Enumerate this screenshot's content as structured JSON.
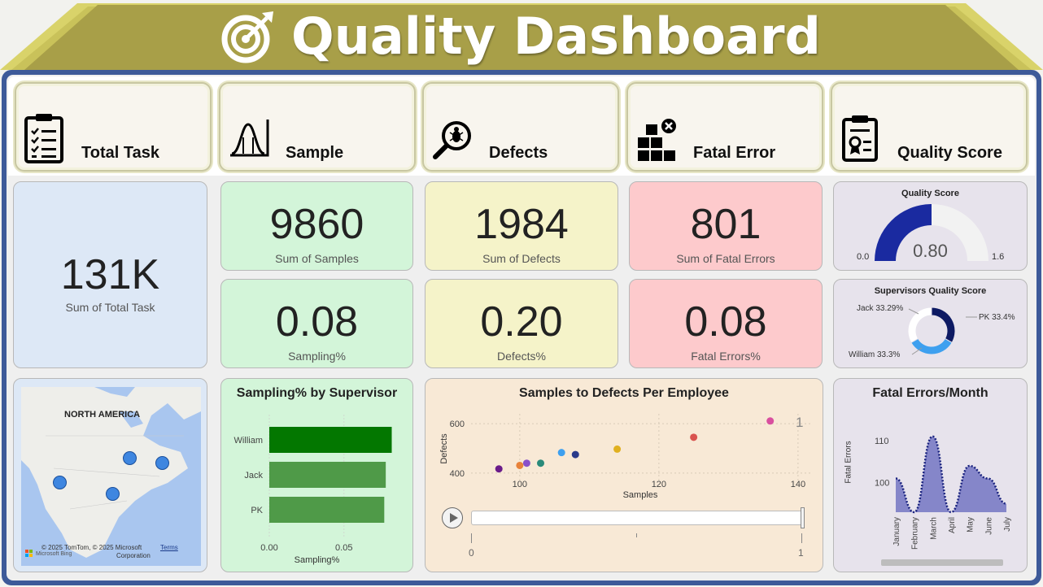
{
  "header": {
    "title": "Quality Dashboard",
    "icon": "target-icon"
  },
  "categories": [
    {
      "label": "Total Task",
      "icon": "clipboard-checklist-icon"
    },
    {
      "label": "Sample",
      "icon": "bell-curve-icon"
    },
    {
      "label": "Defects",
      "icon": "bug-magnifier-icon"
    },
    {
      "label": "Fatal Error",
      "icon": "boxes-error-icon"
    },
    {
      "label": "Quality Score",
      "icon": "clipboard-badge-icon"
    }
  ],
  "kpis": {
    "total_task": {
      "value": "131K",
      "label": "Sum of Total Task"
    },
    "samples": {
      "value": "9860",
      "label": "Sum of Samples"
    },
    "defects": {
      "value": "1984",
      "label": "Sum of Defects"
    },
    "fatal_errors": {
      "value": "801",
      "label": "Sum of Fatal Errors"
    },
    "sampling_pct": {
      "value": "0.08",
      "label": "Sampling%"
    },
    "defects_pct": {
      "value": "0.20",
      "label": "Defects%"
    },
    "fatal_pct": {
      "value": "0.08",
      "label": "Fatal  Errors%"
    }
  },
  "gauge": {
    "title": "Quality Score",
    "value": "0.80",
    "min": "0.0",
    "max": "1.6",
    "fill_fraction": 0.5,
    "fill_color": "#1a2aa0",
    "track_color": "#f2f2f2"
  },
  "donut": {
    "title": "Supervisors Quality Score",
    "slices": [
      {
        "name": "Jack",
        "pct": 33.29,
        "label": "Jack 33.29%",
        "color": "#0d1a63"
      },
      {
        "name": "PK",
        "pct": 33.4,
        "label": "PK 33.4%",
        "color": "#3ea0ef"
      },
      {
        "name": "William",
        "pct": 33.3,
        "label": "William 33.3%",
        "color": "#ffffff"
      }
    ]
  },
  "map": {
    "region_label": "NORTH AMERICA",
    "copyright": "© 2025 TomTom, © 2025 Microsoft Corporation",
    "copyright_line1": "© 2025 TomTom, © 2025 Microsoft",
    "copyright_line2": "Corporation",
    "terms": "Terms",
    "brand": "Microsoft Bing"
  },
  "chart_data": [
    {
      "type": "bar",
      "title": "Sampling% by Supervisor",
      "categories": [
        "William",
        "Jack",
        "PK"
      ],
      "values": [
        0.082,
        0.078,
        0.077
      ],
      "xlabel": "Sampling%",
      "xlim": [
        0,
        0.085
      ],
      "ticks": [
        "0.00",
        "0.05"
      ],
      "colors": [
        "#037700",
        "#4f9a48",
        "#4f9a48"
      ]
    },
    {
      "type": "scatter",
      "title": "Samples to Defects Per Employee",
      "xlabel": "Samples",
      "ylabel": "Defects",
      "xlim": [
        93,
        142
      ],
      "ylim": [
        360,
        640
      ],
      "xticks": [
        "100",
        "120",
        "140"
      ],
      "yticks": [
        "400",
        "600"
      ],
      "frame_label": "1",
      "points": [
        {
          "x": 97,
          "y": 417,
          "color": "#6a1b8a"
        },
        {
          "x": 100,
          "y": 431,
          "color": "#e8823a"
        },
        {
          "x": 101,
          "y": 440,
          "color": "#8a4fc9"
        },
        {
          "x": 103,
          "y": 440,
          "color": "#2a8a7a"
        },
        {
          "x": 106,
          "y": 483,
          "color": "#3ea0ef"
        },
        {
          "x": 108,
          "y": 475,
          "color": "#2a3a8a"
        },
        {
          "x": 114,
          "y": 497,
          "color": "#e0b020"
        },
        {
          "x": 125,
          "y": 545,
          "color": "#d9534f"
        },
        {
          "x": 136,
          "y": 611,
          "color": "#d94f9f"
        }
      ],
      "play_axis": {
        "start": "0",
        "end": "1"
      }
    },
    {
      "type": "area",
      "title": "Fatal Errors/Month",
      "ylabel": "Fatal Errors",
      "categories": [
        "January",
        "February",
        "March",
        "April",
        "May",
        "June",
        "July"
      ],
      "values": [
        101,
        93,
        111,
        93,
        104,
        101,
        95
      ],
      "ylim": [
        93,
        115
      ],
      "yticks": [
        "100",
        "110"
      ],
      "color": "#8586c9",
      "line_color": "#1a237e"
    }
  ]
}
